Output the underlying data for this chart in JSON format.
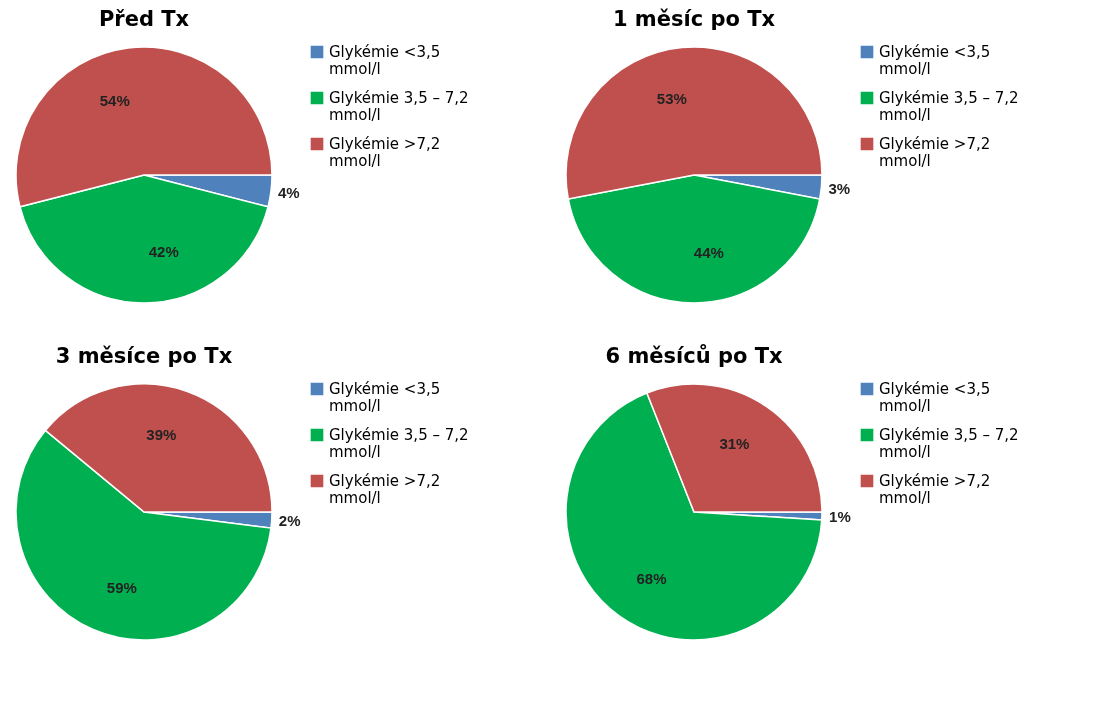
{
  "chart_data": [
    {
      "type": "pie",
      "title": "Před Tx",
      "categories": [
        "Glykémie <3,5 mmol/l",
        "Glykémie 3,5 – 7,2 mmol/l",
        "Glykémie >7,2 mmol/l"
      ],
      "values": [
        4,
        42,
        54
      ],
      "value_labels": [
        "4%",
        "42%",
        "54%"
      ],
      "colors": [
        "#4f81bd",
        "#00b050",
        "#c0504d"
      ],
      "legend": "right"
    },
    {
      "type": "pie",
      "title": "1 měsíc po Tx",
      "categories": [
        "Glykémie <3,5 mmol/l",
        "Glykémie 3,5 – 7,2 mmol/l",
        "Glykémie >7,2 mmol/l"
      ],
      "values": [
        3,
        44,
        53
      ],
      "value_labels": [
        "3%",
        "44%",
        "53%"
      ],
      "colors": [
        "#4f81bd",
        "#00b050",
        "#c0504d"
      ],
      "legend": "right"
    },
    {
      "type": "pie",
      "title": "3 měsíce po Tx",
      "categories": [
        "Glykémie <3,5 mmol/l",
        "Glykémie 3,5 – 7,2 mmol/l",
        "Glykémie >7,2 mmol/l"
      ],
      "values": [
        2,
        59,
        39
      ],
      "value_labels": [
        "2%",
        "59%",
        "39%"
      ],
      "colors": [
        "#4f81bd",
        "#00b050",
        "#c0504d"
      ],
      "legend": "right"
    },
    {
      "type": "pie",
      "title": "6 měsíců po Tx",
      "categories": [
        "Glykémie <3,5 mmol/l",
        "Glykémie 3,5 – 7,2 mmol/l",
        "Glykémie >7,2 mmol/l"
      ],
      "values": [
        1,
        68,
        31
      ],
      "value_labels": [
        "1%",
        "68%",
        "31%"
      ],
      "colors": [
        "#4f81bd",
        "#00b050",
        "#c0504d"
      ],
      "legend": "right"
    }
  ]
}
